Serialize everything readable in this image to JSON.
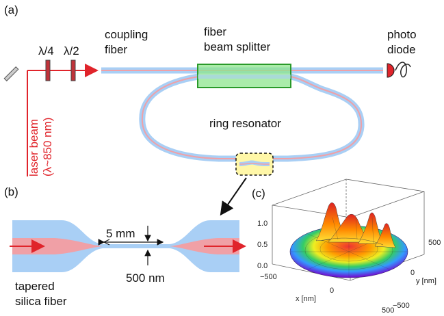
{
  "panels": {
    "a": "(a)",
    "b": "(b)",
    "c": "(c)"
  },
  "labels": {
    "wave_quarter": "λ/4",
    "wave_half": "λ/2",
    "coupling_fiber": [
      "coupling",
      "fiber"
    ],
    "beam_splitter": [
      "fiber",
      "beam splitter"
    ],
    "photo_diode": [
      "photo",
      "diode"
    ],
    "ring_resonator": "ring resonator",
    "laser_beam": [
      "laser beam",
      "(λ~850 nm)"
    ],
    "length": "5 mm",
    "diameter": "500 nm",
    "tapered_fiber": [
      "tapered",
      "silica fiber"
    ]
  },
  "plot3d": {
    "z_ticks": [
      "1.0",
      "0.5",
      "0.0"
    ],
    "x_ticks": [
      "−500",
      "0",
      "500"
    ],
    "y_ticks": [
      "500",
      "0",
      "−500"
    ],
    "xlabel": "x [nm]",
    "ylabel": "y [nm]"
  },
  "colors": {
    "fiber_cladding": "#a9cff5",
    "fiber_core": "#f0a0a6",
    "laser": "#e0242b",
    "splitter_fill": "#8ee68e",
    "splitter_stroke": "#2a9a2a",
    "zoom_box": "#fff7a8"
  }
}
